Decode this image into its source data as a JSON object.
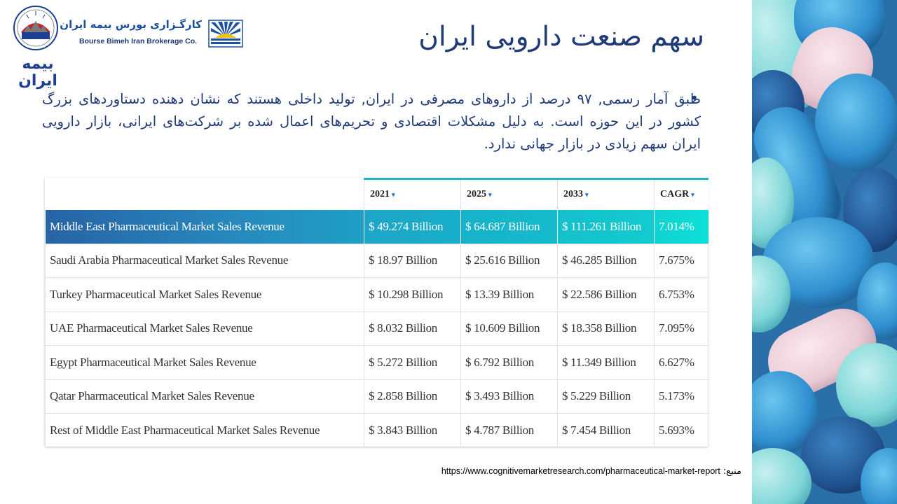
{
  "slide": {
    "title": "سهم صنعت دارویی ایران",
    "paragraph": "طبق آمار رسمی, ۹۷ درصد از داروهای مصرفی در ایران, تولید داخلی هستند که نشان دهنده دستاوردهای بزرگ کشور در این حوزه است. به دلیل مشکلات اقتصادی و تحریم‌های اعمال شده بر شرکت‌های ایرانی، بازار دارویی ایران سهم زیادی در بازار جهانی ندارد.",
    "bullet": "•"
  },
  "logos": {
    "insurer_text": "بیمه ایران",
    "broker_fa": "کارگـزاری بورس بیمه ایران",
    "broker_en": "Bourse Bimeh Iran Brokerage Co."
  },
  "table": {
    "headers": [
      "",
      "2021",
      "2025",
      "2033",
      "CAGR"
    ],
    "caret": "▾",
    "rows": [
      [
        "Middle East Pharmaceutical Market Sales Revenue",
        "$ 49.274 Billion",
        "$ 64.687 Billion",
        "$ 111.261 Billion",
        "7.014%"
      ],
      [
        "Saudi Arabia Pharmaceutical Market Sales Revenue",
        "$ 18.97 Billion",
        "$ 25.616 Billion",
        "$ 46.285 Billion",
        "7.675%"
      ],
      [
        "Turkey Pharmaceutical Market Sales Revenue",
        "$ 10.298 Billion",
        "$ 13.39 Billion",
        "$ 22.586 Billion",
        "6.753%"
      ],
      [
        "UAE Pharmaceutical Market Sales Revenue",
        "$ 8.032 Billion",
        "$ 10.609 Billion",
        "$ 18.358 Billion",
        "7.095%"
      ],
      [
        "Egypt Pharmaceutical Market Sales Revenue",
        "$ 5.272 Billion",
        "$ 6.792 Billion",
        "$ 11.349 Billion",
        "6.627%"
      ],
      [
        "Qatar Pharmaceutical Market Sales Revenue",
        "$ 2.858 Billion",
        "$ 3.493 Billion",
        "$ 5.229 Billion",
        "5.173%"
      ],
      [
        "Rest of Middle East Pharmaceutical Market Sales Revenue",
        "$ 3.843 Billion",
        "$ 4.787 Billion",
        "$ 7.454 Billion",
        "5.693%"
      ]
    ]
  },
  "source": {
    "label": "منبع:",
    "url": "https://www.cognitivemarketresearch.com/pharmaceutical-market-report"
  },
  "colors": {
    "title": "#1f3a78",
    "table_accent": "#19b5c8",
    "highlight_start": "#2763a5",
    "highlight_end": "#0ee0d8"
  },
  "icons": {
    "insurer_logo": "seal-emblem-icon",
    "broker_logo": "sunburst-emblem-icon",
    "header_sort": "caret-down-icon",
    "side_image": "pills-photo"
  }
}
